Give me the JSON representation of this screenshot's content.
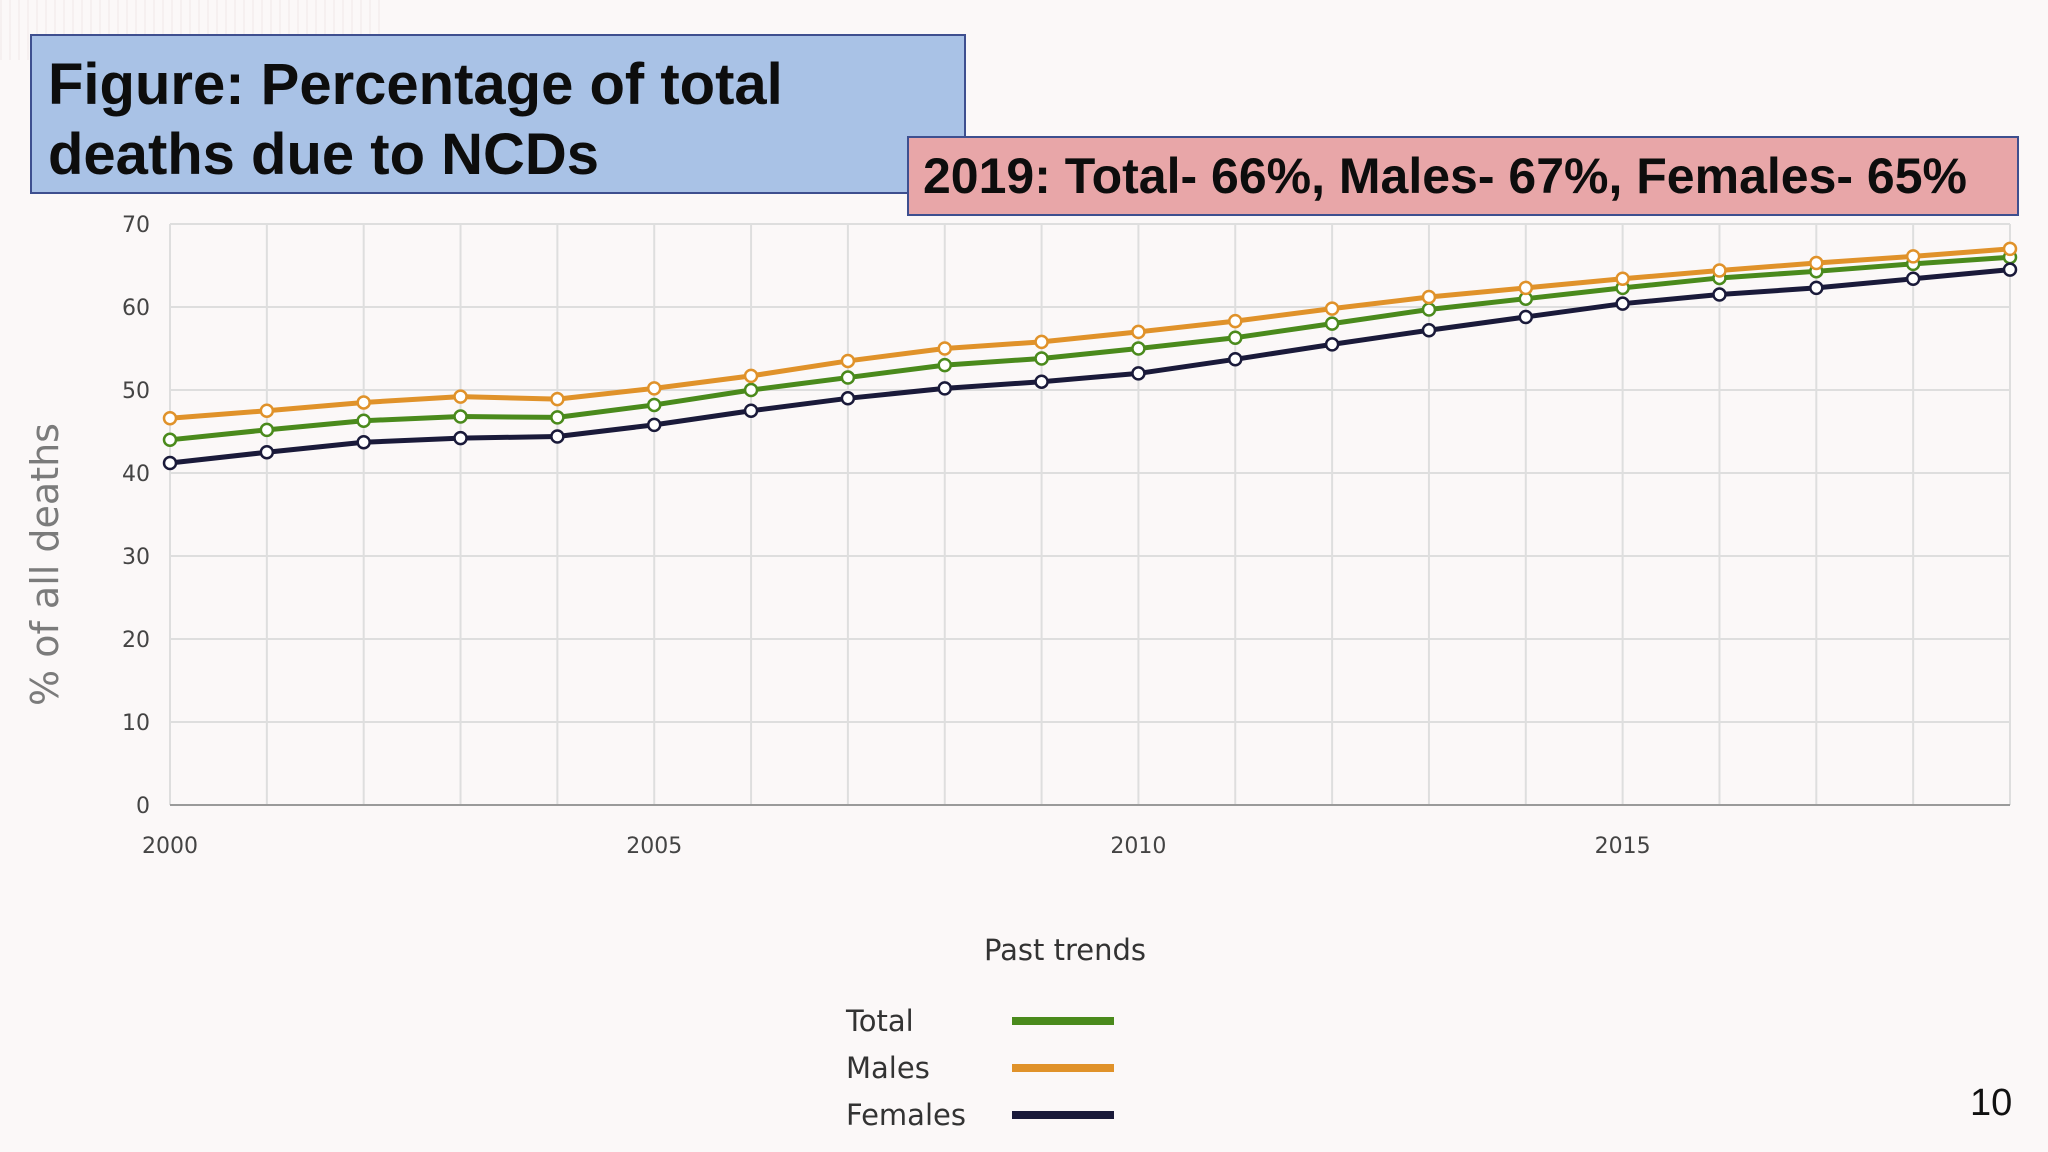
{
  "slide": {
    "title_line1": "Figure: Percentage of total",
    "title_line2": "deaths due to NCDs",
    "stat": "2019: Total- 66%, Males- 67%, Females- 65%",
    "page_number": "10",
    "title_bg": "#a9c2e6",
    "stat_bg": "#e8a6a8"
  },
  "chart_data": {
    "type": "line",
    "ylabel": "% of all deaths",
    "ylim": [
      0,
      70
    ],
    "yticks": [
      0,
      10,
      20,
      30,
      40,
      50,
      60,
      70
    ],
    "xlim": [
      2000,
      2019
    ],
    "xticks": [
      2000,
      2005,
      2010,
      2015
    ],
    "x": [
      2000,
      2001,
      2002,
      2003,
      2004,
      2005,
      2006,
      2007,
      2008,
      2009,
      2010,
      2011,
      2012,
      2013,
      2014,
      2015,
      2016,
      2017,
      2018,
      2019
    ],
    "grid": true,
    "legend_title": "Past trends",
    "legend_position": "bottom",
    "series": [
      {
        "name": "Total",
        "color": "#4a8a1c",
        "values": [
          44,
          45.2,
          46.3,
          46.8,
          46.7,
          48.2,
          50,
          51.5,
          53,
          53.8,
          55,
          56.3,
          58,
          59.7,
          61,
          62.3,
          63.5,
          64.3,
          65.2,
          66
        ]
      },
      {
        "name": "Males",
        "color": "#e0922a",
        "values": [
          46.6,
          47.5,
          48.5,
          49.2,
          48.9,
          50.2,
          51.7,
          53.5,
          55,
          55.8,
          57,
          58.3,
          59.8,
          61.2,
          62.3,
          63.4,
          64.4,
          65.3,
          66.1,
          67
        ]
      },
      {
        "name": "Females",
        "color": "#1a1a3a",
        "values": [
          41.2,
          42.5,
          43.7,
          44.2,
          44.4,
          45.8,
          47.5,
          49,
          50.2,
          51,
          52,
          53.7,
          55.5,
          57.2,
          58.8,
          60.4,
          61.5,
          62.3,
          63.4,
          64.5
        ]
      }
    ]
  }
}
